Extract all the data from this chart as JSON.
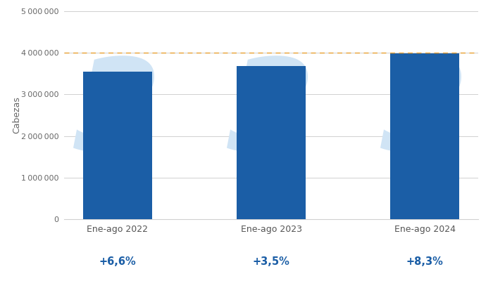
{
  "categories": [
    "Ene-ago 2022",
    "Ene-ago 2023",
    "Ene-ago 2024"
  ],
  "values": [
    3550000,
    3675000,
    3980000
  ],
  "bar_color": "#1B5EA6",
  "pct_labels": [
    "+6,6%",
    "+3,5%",
    "+8,3%"
  ],
  "pct_color": "#1B5EA6",
  "ylabel": "Cabezas",
  "ylim": [
    0,
    5000000
  ],
  "yticks": [
    0,
    1000000,
    2000000,
    3000000,
    4000000,
    5000000
  ],
  "hline_y": 4000000,
  "hline_color": "#E8A030",
  "background_color": "#ffffff",
  "grid_color": "#d0d0d0",
  "watermark_color": "#D0E4F5",
  "bar_width": 0.45,
  "figwidth": 7.0,
  "figheight": 4.0,
  "dpi": 100
}
